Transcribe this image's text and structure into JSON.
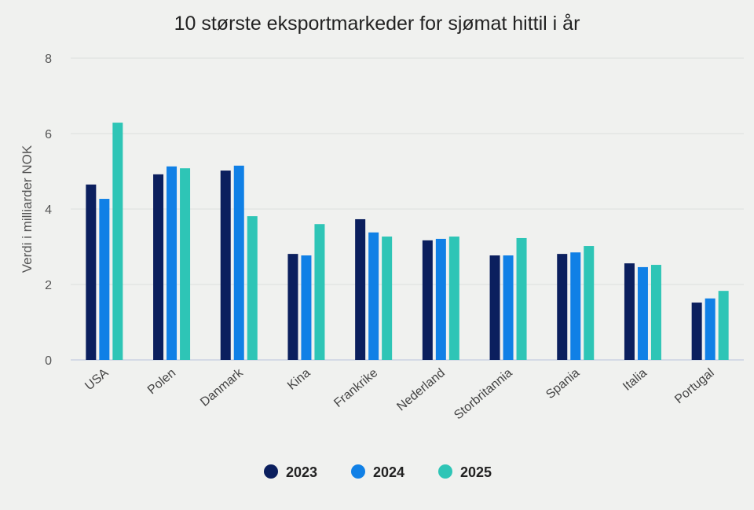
{
  "chart_data": {
    "type": "bar",
    "title": "10 største eksportmarkeder for sjømat hittil i år",
    "xlabel": "",
    "ylabel": "Verdi i milliarder NOK",
    "ylim": [
      0,
      8
    ],
    "yticks": [
      0,
      2,
      4,
      6,
      8
    ],
    "grid": true,
    "legend_position": "bottom",
    "categories": [
      "USA",
      "Polen",
      "Danmark",
      "Kina",
      "Frankrike",
      "Nederland",
      "Storbritannia",
      "Spania",
      "Italia",
      "Portugal"
    ],
    "series": [
      {
        "name": "2023",
        "color": "#0b1f5e",
        "values": [
          4.65,
          4.92,
          5.02,
          2.81,
          3.73,
          3.17,
          2.77,
          2.81,
          2.56,
          1.52
        ]
      },
      {
        "name": "2024",
        "color": "#1080e6",
        "values": [
          4.27,
          5.13,
          5.15,
          2.77,
          3.38,
          3.21,
          2.77,
          2.85,
          2.46,
          1.63
        ]
      },
      {
        "name": "2025",
        "color": "#2ec5b6",
        "values": [
          6.29,
          5.08,
          3.81,
          3.6,
          3.27,
          3.27,
          3.23,
          3.02,
          2.52,
          1.83
        ]
      }
    ]
  }
}
